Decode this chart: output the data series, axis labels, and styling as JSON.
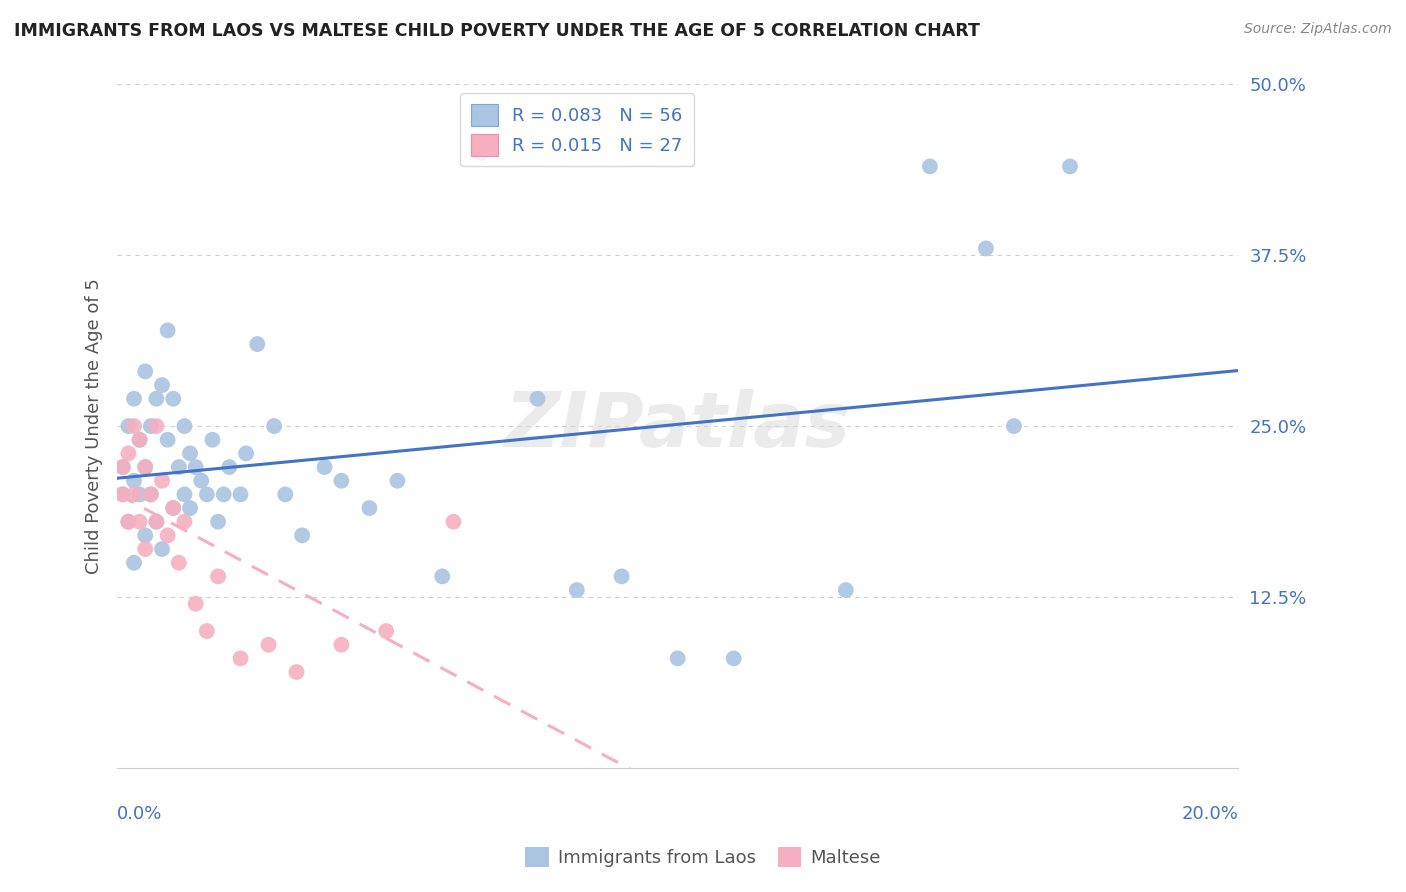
{
  "title": "IMMIGRANTS FROM LAOS VS MALTESE CHILD POVERTY UNDER THE AGE OF 5 CORRELATION CHART",
  "source": "Source: ZipAtlas.com",
  "ylabel": "Child Poverty Under the Age of 5",
  "legend_label1": "Immigrants from Laos",
  "legend_label2": "Maltese",
  "legend_R1": "R = 0.083",
  "legend_N1": "N = 56",
  "legend_R2": "R = 0.015",
  "legend_N2": "N = 27",
  "color_blue": "#aac4e2",
  "color_pink": "#f5afc0",
  "color_blue_line": "#4472c4",
  "color_pink_line": "#f5afc0",
  "color_text_blue": "#4472c4",
  "watermark": "ZIPatlas",
  "blue_scatter_x": [
    0.001,
    0.001,
    0.002,
    0.002,
    0.003,
    0.003,
    0.003,
    0.004,
    0.004,
    0.005,
    0.005,
    0.005,
    0.006,
    0.006,
    0.007,
    0.007,
    0.008,
    0.008,
    0.009,
    0.009,
    0.01,
    0.01,
    0.011,
    0.012,
    0.012,
    0.013,
    0.013,
    0.014,
    0.015,
    0.016,
    0.017,
    0.018,
    0.019,
    0.02,
    0.022,
    0.023,
    0.025,
    0.028,
    0.03,
    0.033,
    0.037,
    0.04,
    0.045,
    0.05,
    0.058,
    0.065,
    0.075,
    0.082,
    0.09,
    0.1,
    0.11,
    0.13,
    0.145,
    0.155,
    0.16,
    0.17
  ],
  "blue_scatter_y": [
    0.2,
    0.22,
    0.18,
    0.25,
    0.15,
    0.21,
    0.27,
    0.2,
    0.24,
    0.17,
    0.22,
    0.29,
    0.2,
    0.25,
    0.18,
    0.27,
    0.16,
    0.28,
    0.24,
    0.32,
    0.19,
    0.27,
    0.22,
    0.2,
    0.25,
    0.19,
    0.23,
    0.22,
    0.21,
    0.2,
    0.24,
    0.18,
    0.2,
    0.22,
    0.2,
    0.23,
    0.31,
    0.25,
    0.2,
    0.17,
    0.22,
    0.21,
    0.19,
    0.21,
    0.14,
    0.45,
    0.27,
    0.13,
    0.14,
    0.08,
    0.08,
    0.13,
    0.44,
    0.38,
    0.25,
    0.44
  ],
  "pink_scatter_x": [
    0.001,
    0.001,
    0.002,
    0.002,
    0.003,
    0.003,
    0.004,
    0.004,
    0.005,
    0.005,
    0.006,
    0.007,
    0.007,
    0.008,
    0.009,
    0.01,
    0.011,
    0.012,
    0.014,
    0.016,
    0.018,
    0.022,
    0.027,
    0.032,
    0.04,
    0.048,
    0.06
  ],
  "pink_scatter_y": [
    0.2,
    0.22,
    0.18,
    0.23,
    0.2,
    0.25,
    0.18,
    0.24,
    0.16,
    0.22,
    0.2,
    0.18,
    0.25,
    0.21,
    0.17,
    0.19,
    0.15,
    0.18,
    0.12,
    0.1,
    0.14,
    0.08,
    0.09,
    0.07,
    0.09,
    0.1,
    0.18
  ]
}
